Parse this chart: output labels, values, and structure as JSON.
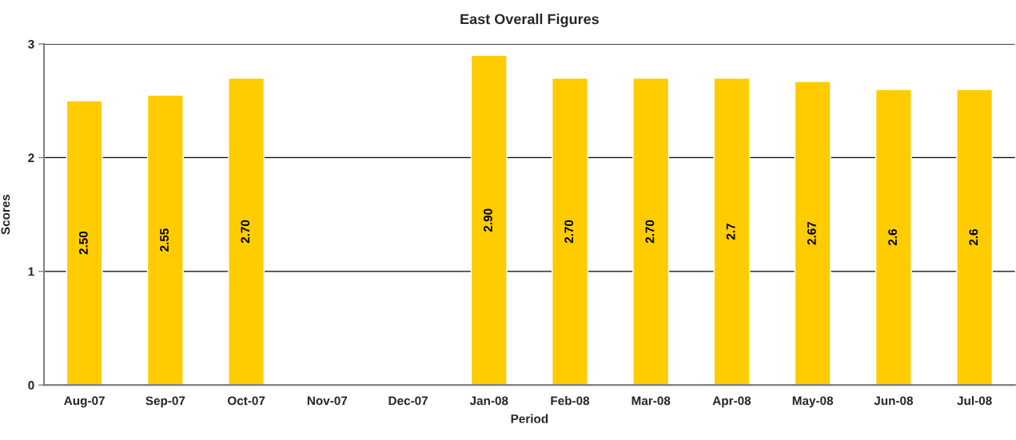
{
  "chart_data": {
    "type": "bar",
    "title": "East Overall Figures",
    "xlabel": "Period",
    "ylabel": "Scores",
    "categories": [
      "Aug-07",
      "Sep-07",
      "Oct-07",
      "Nov-07",
      "Dec-07",
      "Jan-08",
      "Feb-08",
      "Mar-08",
      "Apr-08",
      "May-08",
      "Jun-08",
      "Jul-08"
    ],
    "values": [
      2.5,
      2.55,
      2.7,
      null,
      null,
      2.9,
      2.7,
      2.7,
      2.7,
      2.67,
      2.6,
      2.6
    ],
    "value_labels": [
      "2.50",
      "2.55",
      "2.70",
      null,
      null,
      "2.90",
      "2.70",
      "2.70",
      "2.7",
      "2.67",
      "2.6",
      "2.6"
    ],
    "color": "#ffcc00",
    "ylim": [
      0,
      3
    ],
    "yticks": [
      0,
      1,
      2,
      3
    ],
    "grid": "y",
    "legend": false
  }
}
